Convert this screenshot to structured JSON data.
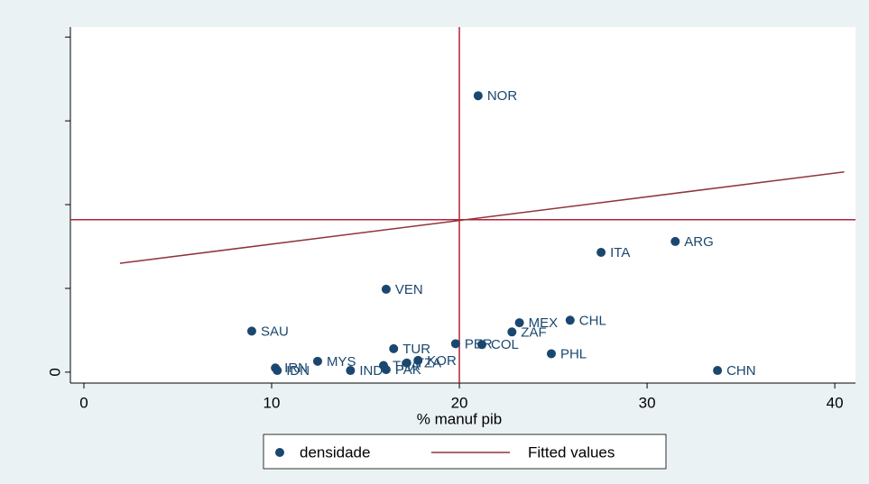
{
  "chart_data": {
    "type": "scatter",
    "x_label": "% manuf pib",
    "xlim": [
      -0.72,
      41.1
    ],
    "xticks": [
      0,
      10,
      20,
      30,
      40
    ],
    "ylim": [
      -0.13,
      4.12
    ],
    "yticks": [
      0
    ],
    "y_unlabeled_ticks": [
      1,
      2,
      3,
      4
    ],
    "xline": 20,
    "yline": 1.82,
    "ref_color": "#b22234",
    "legend": "bottom",
    "series": [
      {
        "name": "densidade",
        "type": "scatter",
        "color": "#1a476f",
        "labels": [
          "NOR",
          "ARG",
          "ITA",
          "VEN",
          "CHL",
          "MEX",
          "SAU",
          "ZAF",
          "PER",
          "COL",
          "TUR",
          "PHL",
          "MYS",
          "KOR",
          "TZA",
          "THA",
          "IRN",
          "IDN",
          "IND",
          "PAK",
          "CHN"
        ],
        "x": [
          21.0,
          31.5,
          27.55,
          16.1,
          25.9,
          23.2,
          8.94,
          22.8,
          19.8,
          21.2,
          16.5,
          24.9,
          12.45,
          17.8,
          17.2,
          15.96,
          10.2,
          10.3,
          14.2,
          16.1,
          33.75
        ],
        "values": [
          3.3,
          1.56,
          1.43,
          0.99,
          0.62,
          0.59,
          0.49,
          0.48,
          0.34,
          0.33,
          0.28,
          0.22,
          0.13,
          0.14,
          0.11,
          0.08,
          0.05,
          0.02,
          0.02,
          0.03,
          0.02
        ]
      },
      {
        "name": "Fitted values",
        "type": "line",
        "color": "#90353b",
        "x": [
          1.92,
          40.5
        ],
        "values": [
          1.3,
          2.39
        ]
      }
    ]
  }
}
